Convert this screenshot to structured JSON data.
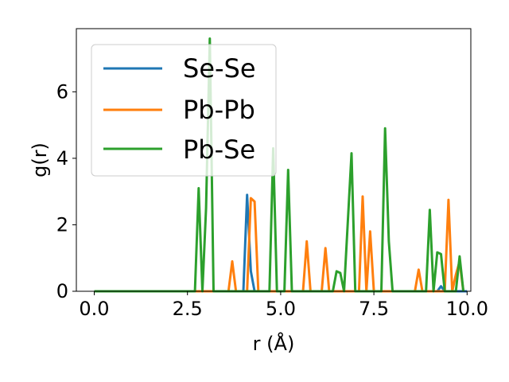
{
  "chart_data": {
    "type": "line",
    "xlabel": "r (Å)",
    "ylabel": "g(r)",
    "xlim": [
      -0.48,
      10.1
    ],
    "ylim": [
      0,
      7.9
    ],
    "xticks": [
      0.0,
      2.5,
      5.0,
      7.5,
      10.0
    ],
    "xtick_labels": [
      "0.0",
      "2.5",
      "5.0",
      "7.5",
      "10.0"
    ],
    "yticks": [
      0,
      2,
      4,
      6
    ],
    "ytick_labels": [
      "0",
      "2",
      "4",
      "6"
    ],
    "grid": false,
    "legend_position": "top-left",
    "series": [
      {
        "name": "Se-Se",
        "color": "#1f77b4",
        "x": [
          0.0,
          4.0,
          4.1,
          4.2,
          4.3,
          9.2,
          9.3,
          9.4,
          10.0
        ],
        "y": [
          0,
          0,
          2.9,
          0.6,
          0,
          0,
          0.15,
          0,
          0
        ]
      },
      {
        "name": "Pb-Pb",
        "color": "#ff7f0e",
        "x": [
          0.0,
          3.6,
          3.7,
          3.8,
          4.1,
          4.2,
          4.3,
          4.4,
          5.6,
          5.7,
          5.8,
          6.1,
          6.2,
          6.3,
          7.1,
          7.2,
          7.3,
          7.4,
          7.5,
          8.6,
          8.7,
          8.8,
          9.4,
          9.5,
          9.6,
          9.7,
          9.8,
          9.9
        ],
        "y": [
          0,
          0,
          0.9,
          0,
          0,
          2.8,
          2.7,
          0,
          0,
          1.5,
          0,
          0,
          1.3,
          0,
          0,
          2.85,
          0,
          1.8,
          0,
          0,
          0.65,
          0,
          0,
          2.75,
          0,
          0.5,
          0.9,
          0
        ]
      },
      {
        "name": "Pb-Se",
        "color": "#2ca02c",
        "x": [
          0.0,
          2.7,
          2.8,
          2.9,
          3.0,
          3.1,
          3.2,
          4.7,
          4.8,
          4.9,
          5.1,
          5.2,
          5.3,
          6.4,
          6.5,
          6.6,
          6.7,
          6.9,
          7.0,
          7.7,
          7.8,
          7.9,
          8.0,
          8.9,
          9.0,
          9.1,
          9.2,
          9.3,
          9.4,
          9.7,
          9.8,
          9.9
        ],
        "y": [
          0,
          0,
          3.1,
          0,
          2.5,
          7.6,
          0,
          0,
          4.3,
          0,
          0,
          3.65,
          0,
          0,
          0.6,
          0.55,
          0,
          4.15,
          0,
          0,
          4.9,
          1.5,
          0,
          0,
          2.45,
          0,
          1.17,
          1.12,
          0,
          0,
          1.05,
          0
        ]
      }
    ]
  }
}
